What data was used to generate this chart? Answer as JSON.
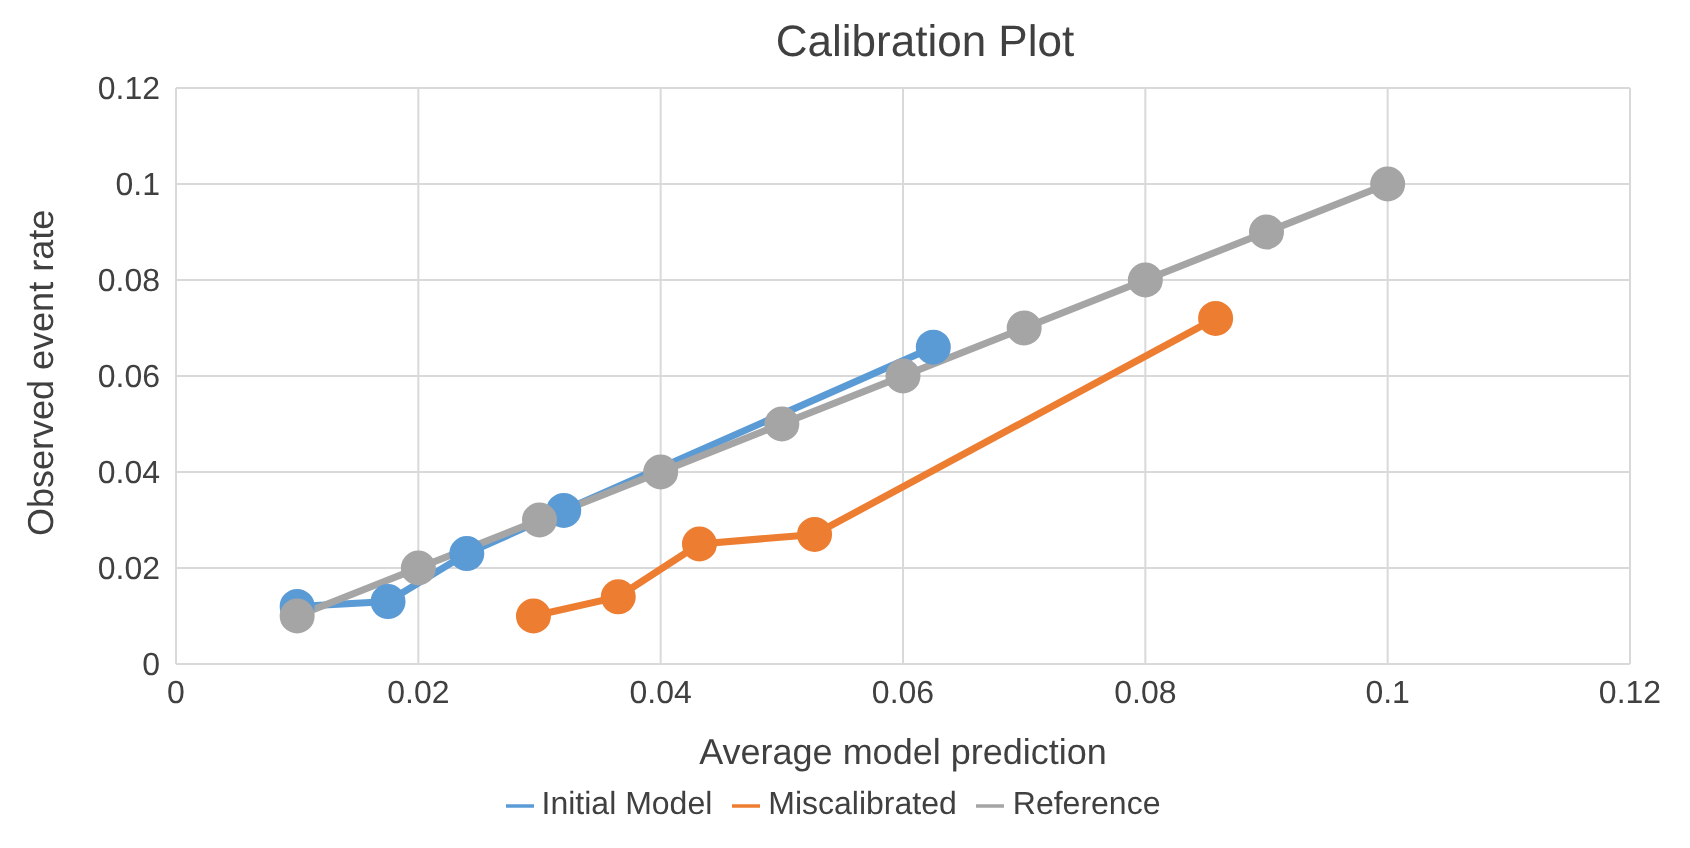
{
  "chart_data": {
    "type": "line",
    "title": "Calibration Plot",
    "xlabel": "Average model prediction",
    "ylabel": "Observed event rate",
    "series": [
      {
        "name": "Initial Model",
        "color": "#5b9bd5",
        "x": [
          0.01,
          0.0175,
          0.024,
          0.032,
          0.0625
        ],
        "values": [
          0.012,
          0.013,
          0.023,
          0.032,
          0.066
        ]
      },
      {
        "name": "Miscalibrated",
        "color": "#ed7d31",
        "x": [
          0.0295,
          0.0365,
          0.0432,
          0.0527,
          0.0858
        ],
        "values": [
          0.01,
          0.014,
          0.025,
          0.027,
          0.072
        ]
      },
      {
        "name": "Reference",
        "color": "#a5a5a5",
        "x": [
          0.01,
          0.02,
          0.03,
          0.04,
          0.05,
          0.06,
          0.07,
          0.08,
          0.09,
          0.1
        ],
        "values": [
          0.01,
          0.02,
          0.03,
          0.04,
          0.05,
          0.06,
          0.07,
          0.08,
          0.09,
          0.1
        ]
      }
    ],
    "xlim": [
      0,
      0.12
    ],
    "xticks": [
      0,
      0.02,
      0.04,
      0.06,
      0.08,
      0.1,
      0.12
    ],
    "ylim": [
      0,
      0.12
    ],
    "yticks": [
      0,
      0.02,
      0.04,
      0.06,
      0.08,
      0.1,
      0.12
    ],
    "grid": true,
    "legend": "bottom",
    "marker": "circle",
    "line_style": "solid"
  }
}
